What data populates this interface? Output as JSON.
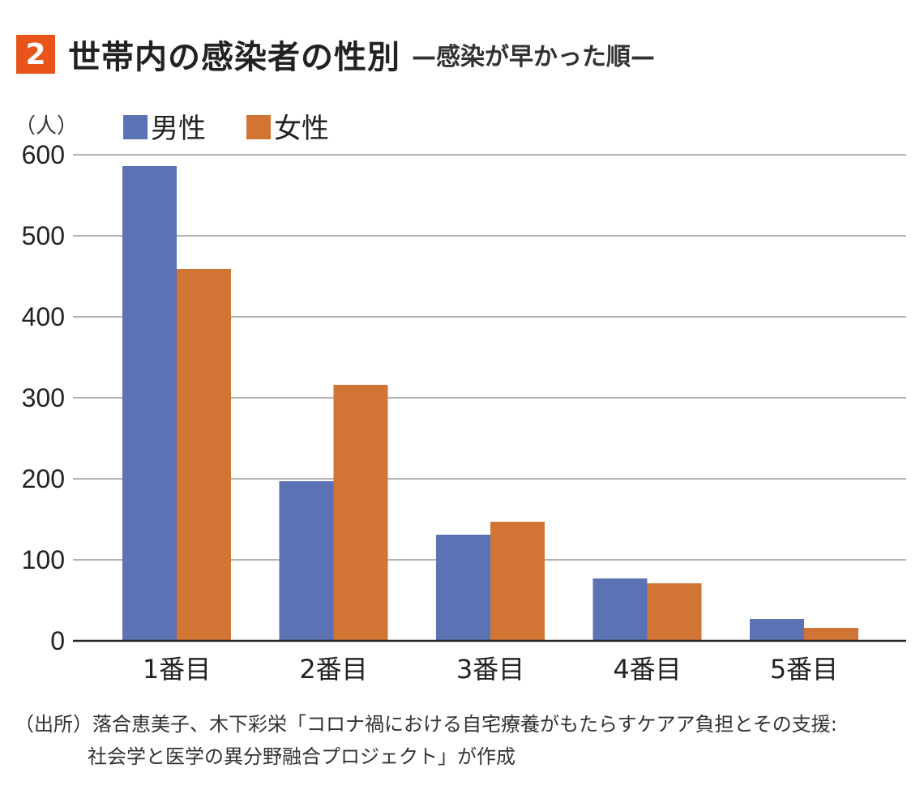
{
  "header": {
    "badge": "2",
    "title": "世帯内の感染者の性別",
    "subtitle": "—感染が早かった順—"
  },
  "source": {
    "line1": "（出所）落合恵美子、木下彩栄「コロナ禍における自宅療養がもたらすケアア負担とその支援:",
    "line2": "社会学と医学の異分野融合プロジェクト」が作成"
  },
  "chart_data": {
    "type": "bar",
    "title": "世帯内の感染者の性別",
    "ylabel": "（人）",
    "xlabel": "",
    "categories": [
      "1番目",
      "2番目",
      "3番目",
      "4番目",
      "5番目"
    ],
    "series": [
      {
        "name": "男性",
        "color": "#5b72b5",
        "values": [
          586,
          197,
          131,
          77,
          27
        ]
      },
      {
        "name": "女性",
        "color": "#d27534",
        "values": [
          459,
          316,
          147,
          71,
          16
        ]
      }
    ],
    "ylim": [
      0,
      600
    ],
    "yticks": [
      0,
      100,
      200,
      300,
      400,
      500,
      600
    ],
    "grid": true,
    "legend": "top-left"
  }
}
